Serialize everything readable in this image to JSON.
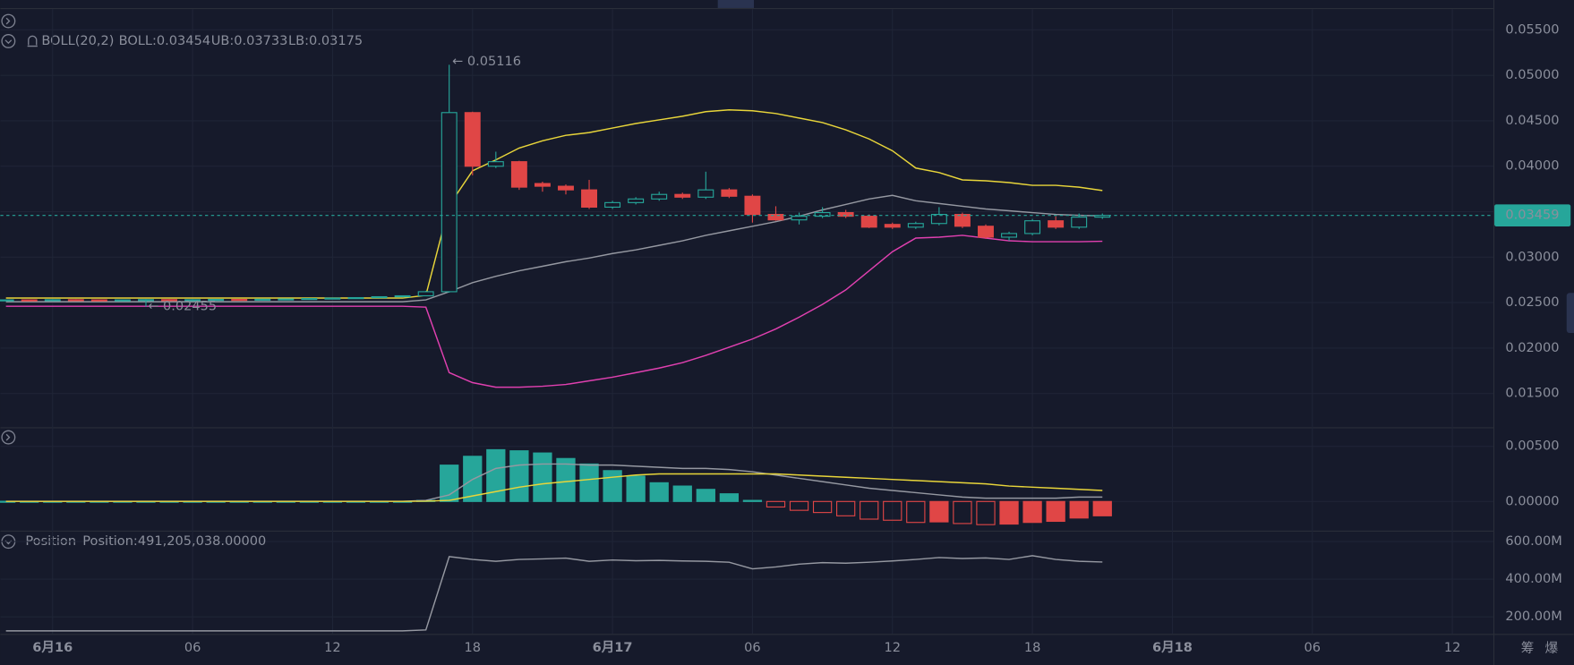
{
  "toolbar": [
    "筹",
    "爆"
  ],
  "chart_data": [
    {
      "type": "candlestick",
      "indicator_label": "BOLL(20,2)",
      "readouts": [
        "BOLL:0.03454",
        "UB:0.03733",
        "LB:0.03175"
      ],
      "annotations": [
        "← 0.05116",
        "← 0.02455"
      ],
      "last_price": {
        "value": 0.03459,
        "label": "0.03459"
      },
      "last_color": "#26a69a",
      "up_color": "#26a69a",
      "down_color": "#e04646",
      "xlim": [
        -2.24,
        61.76
      ],
      "xticks": [
        {
          "value": 0,
          "label": "6月16"
        },
        {
          "value": 6,
          "label": "06"
        },
        {
          "value": 12,
          "label": "12"
        },
        {
          "value": 18,
          "label": "18"
        },
        {
          "value": 24,
          "label": "6月17"
        },
        {
          "value": 30,
          "label": "06"
        },
        {
          "value": 36,
          "label": "12"
        },
        {
          "value": 42,
          "label": "18"
        },
        {
          "value": 48,
          "label": "6月18"
        },
        {
          "value": 54,
          "label": "06"
        },
        {
          "value": 60,
          "label": "12"
        }
      ],
      "ylim": [
        0.0114,
        0.0574
      ],
      "yticks": [
        {
          "value": 0.055,
          "label": "0.05500"
        },
        {
          "value": 0.05,
          "label": "0.05000"
        },
        {
          "value": 0.045,
          "label": "0.04500"
        },
        {
          "value": 0.04,
          "label": "0.04000"
        },
        {
          "value": 0.035,
          "label": "0.03500"
        },
        {
          "value": 0.03,
          "label": "0.03000"
        },
        {
          "value": 0.025,
          "label": "0.02500"
        },
        {
          "value": 0.02,
          "label": "0.02000"
        },
        {
          "value": 0.015,
          "label": "0.01500"
        }
      ],
      "grid": true,
      "x": [
        -2,
        -1,
        0,
        1,
        2,
        3,
        4,
        5,
        6,
        7,
        8,
        9,
        10,
        11,
        12,
        13,
        14,
        15,
        16,
        17,
        18,
        19,
        20,
        21,
        22,
        23,
        24,
        25,
        26,
        27,
        28,
        29,
        30,
        31,
        32,
        33,
        34,
        35,
        36,
        37,
        38,
        39,
        40,
        41,
        42,
        43,
        44,
        45
      ],
      "open": [
        0.02525,
        0.0253,
        0.02528,
        0.02532,
        0.0253,
        0.02527,
        0.0253,
        0.02533,
        0.0253,
        0.02532,
        0.02535,
        0.02533,
        0.02537,
        0.0254,
        0.02545,
        0.0255,
        0.02555,
        0.02565,
        0.02575,
        0.0262,
        0.0459,
        0.04,
        0.0405,
        0.0381,
        0.0378,
        0.0374,
        0.0355,
        0.036,
        0.0364,
        0.0369,
        0.0366,
        0.0374,
        0.0367,
        0.0347,
        0.0341,
        0.0345,
        0.0349,
        0.0345,
        0.0336,
        0.0333,
        0.0337,
        0.0347,
        0.0334,
        0.0322,
        0.0326,
        0.034,
        0.0333,
        0.0344
      ],
      "high": [
        0.02535,
        0.02535,
        0.02537,
        0.02537,
        0.02535,
        0.02535,
        0.02538,
        0.02538,
        0.02537,
        0.0254,
        0.0254,
        0.02542,
        0.02545,
        0.0255,
        0.02555,
        0.0256,
        0.0257,
        0.0258,
        0.0263,
        0.05116,
        0.046,
        0.0416,
        0.0406,
        0.0383,
        0.038,
        0.0385,
        0.0362,
        0.0366,
        0.0372,
        0.0371,
        0.0394,
        0.0376,
        0.0369,
        0.0356,
        0.0349,
        0.0355,
        0.0352,
        0.0347,
        0.0338,
        0.0339,
        0.0355,
        0.0349,
        0.0336,
        0.0328,
        0.0342,
        0.0345,
        0.0348,
        0.0348
      ],
      "low": [
        0.0252,
        0.02523,
        0.02523,
        0.02525,
        0.02522,
        0.02522,
        0.02455,
        0.02525,
        0.02525,
        0.02527,
        0.02528,
        0.02528,
        0.02535,
        0.02535,
        0.0254,
        0.02545,
        0.0255,
        0.0256,
        0.0257,
        0.0261,
        0.039,
        0.0398,
        0.0374,
        0.0372,
        0.0369,
        0.0353,
        0.0353,
        0.0358,
        0.0362,
        0.0364,
        0.0364,
        0.0365,
        0.0338,
        0.034,
        0.0336,
        0.0343,
        0.0343,
        0.0332,
        0.0331,
        0.0331,
        0.0335,
        0.0332,
        0.032,
        0.0318,
        0.0324,
        0.0331,
        0.0331,
        0.0342
      ],
      "close": [
        0.0253,
        0.02528,
        0.02532,
        0.0253,
        0.02527,
        0.0253,
        0.02533,
        0.0253,
        0.02532,
        0.02535,
        0.02533,
        0.02537,
        0.0254,
        0.02545,
        0.0255,
        0.02555,
        0.02565,
        0.02575,
        0.0262,
        0.0459,
        0.04,
        0.0405,
        0.0377,
        0.0378,
        0.0374,
        0.0355,
        0.036,
        0.0364,
        0.0369,
        0.0366,
        0.0374,
        0.0367,
        0.0347,
        0.0341,
        0.0345,
        0.0349,
        0.0345,
        0.0333,
        0.0333,
        0.0337,
        0.0347,
        0.0334,
        0.0322,
        0.0326,
        0.034,
        0.0333,
        0.0344,
        0.03459
      ],
      "series": [
        {
          "name": "BOLL",
          "color": "#9598a1",
          "values": [
            0.0251,
            0.0251,
            0.0251,
            0.0251,
            0.0251,
            0.0251,
            0.0251,
            0.0251,
            0.0251,
            0.0251,
            0.0251,
            0.0251,
            0.0251,
            0.0251,
            0.0251,
            0.0251,
            0.0251,
            0.0251,
            0.0253,
            0.0262,
            0.0272,
            0.0279,
            0.0285,
            0.029,
            0.0295,
            0.0299,
            0.0304,
            0.0308,
            0.0313,
            0.0318,
            0.0324,
            0.0329,
            0.0334,
            0.0339,
            0.0345,
            0.0352,
            0.0358,
            0.0364,
            0.0368,
            0.0362,
            0.0359,
            0.0356,
            0.0353,
            0.0351,
            0.0349,
            0.0347,
            0.0346,
            0.03454
          ]
        },
        {
          "name": "UB",
          "color": "#e8d53a",
          "values": [
            0.0255,
            0.0255,
            0.0255,
            0.0255,
            0.0255,
            0.0255,
            0.0255,
            0.0255,
            0.0255,
            0.0255,
            0.0255,
            0.0255,
            0.0255,
            0.0255,
            0.0255,
            0.0255,
            0.0255,
            0.0255,
            0.0258,
            0.0357,
            0.0395,
            0.0407,
            0.042,
            0.0428,
            0.0434,
            0.0437,
            0.0442,
            0.0447,
            0.0451,
            0.0455,
            0.046,
            0.0462,
            0.0461,
            0.0458,
            0.0453,
            0.0448,
            0.044,
            0.043,
            0.0417,
            0.0398,
            0.0393,
            0.0385,
            0.0384,
            0.0382,
            0.0379,
            0.0379,
            0.0377,
            0.03733
          ]
        },
        {
          "name": "LB",
          "color": "#e040b0",
          "values": [
            0.0246,
            0.0246,
            0.0246,
            0.0246,
            0.0246,
            0.0246,
            0.0246,
            0.0246,
            0.0246,
            0.0246,
            0.0246,
            0.0246,
            0.0246,
            0.0246,
            0.0246,
            0.0246,
            0.0246,
            0.0246,
            0.0245,
            0.0173,
            0.0162,
            0.0157,
            0.0157,
            0.0158,
            0.016,
            0.0164,
            0.0168,
            0.0173,
            0.0178,
            0.0184,
            0.0192,
            0.0201,
            0.021,
            0.0221,
            0.0234,
            0.0248,
            0.0264,
            0.0285,
            0.0306,
            0.0321,
            0.0322,
            0.0324,
            0.0321,
            0.0318,
            0.0317,
            0.0317,
            0.0317,
            0.03175
          ]
        }
      ]
    },
    {
      "type": "histogram",
      "up_color": "#26a69a",
      "down_color": "#e04646",
      "ylim": [
        -0.00255,
        0.00655
      ],
      "yticks": [
        {
          "value": 0.005,
          "label": "0.00500"
        },
        {
          "value": 0,
          "label": "0.00000"
        }
      ],
      "values": [
        2e-05,
        2e-05,
        2e-05,
        2e-05,
        2e-05,
        2e-05,
        2e-05,
        2e-05,
        2e-05,
        2e-05,
        2e-05,
        2e-05,
        2e-05,
        2e-05,
        2e-05,
        2e-05,
        2e-05,
        2e-05,
        0.0001,
        0.0033,
        0.0041,
        0.0047,
        0.0046,
        0.0044,
        0.0039,
        0.0034,
        0.0028,
        0.0023,
        0.0017,
        0.0014,
        0.0011,
        0.0007,
        0.0001,
        -0.0005,
        -0.0008,
        -0.001,
        -0.0013,
        -0.0016,
        -0.0017,
        -0.0019,
        -0.00185,
        -0.002,
        -0.0021,
        -0.00205,
        -0.0019,
        -0.0018,
        -0.0015,
        -0.0013
      ],
      "series": [
        {
          "color": "#9598a1",
          "values": [
            2e-05,
            2e-05,
            2e-05,
            2e-05,
            2e-05,
            2e-05,
            2e-05,
            2e-05,
            2e-05,
            2e-05,
            2e-05,
            2e-05,
            2e-05,
            2e-05,
            2e-05,
            2e-05,
            2e-05,
            2e-05,
            0.0001,
            0.0006,
            0.002,
            0.003,
            0.0033,
            0.0034,
            0.0034,
            0.0033,
            0.0033,
            0.0032,
            0.0031,
            0.003,
            0.003,
            0.0029,
            0.0027,
            0.0024,
            0.0021,
            0.0018,
            0.0015,
            0.0012,
            0.001,
            0.0008,
            0.0006,
            0.0004,
            0.0003,
            0.0003,
            0.0003,
            0.0003,
            0.0004,
            0.0004
          ]
        },
        {
          "color": "#e8d53a",
          "values": [
            1e-05,
            1e-05,
            1e-05,
            1e-05,
            1e-05,
            1e-05,
            1e-05,
            1e-05,
            1e-05,
            1e-05,
            1e-05,
            1e-05,
            1e-05,
            1e-05,
            1e-05,
            1e-05,
            1e-05,
            1e-05,
            3e-05,
            0.0001,
            0.0005,
            0.0009,
            0.0013,
            0.0016,
            0.0018,
            0.002,
            0.0022,
            0.0024,
            0.0025,
            0.0025,
            0.0025,
            0.0025,
            0.0025,
            0.0025,
            0.0024,
            0.0023,
            0.0022,
            0.0021,
            0.002,
            0.0019,
            0.0018,
            0.0017,
            0.0016,
            0.0014,
            0.0013,
            0.0012,
            0.0011,
            0.001
          ]
        }
      ]
    },
    {
      "type": "line",
      "indicator_label": "Position",
      "readouts": [
        "Position:491,205,038.00000"
      ],
      "ylim": [
        109000000,
        653000000
      ],
      "yticks": [
        {
          "value": 600000000,
          "label": "600.00M"
        },
        {
          "value": 400000000,
          "label": "400.00M"
        },
        {
          "value": 200000000,
          "label": "200.00M"
        }
      ],
      "series": [
        {
          "color": "#9598a1",
          "values": [
            125000000,
            125000000,
            125000000,
            125000000,
            125000000,
            125000000,
            125000000,
            125000000,
            125000000,
            125000000,
            125000000,
            125000000,
            125000000,
            125000000,
            125000000,
            125000000,
            125000000,
            125000000,
            130000000,
            520000000,
            505000000,
            495000000,
            505000000,
            508000000,
            512000000,
            495000000,
            502000000,
            498000000,
            500000000,
            497000000,
            495000000,
            490000000,
            455000000,
            465000000,
            480000000,
            488000000,
            485000000,
            490000000,
            497000000,
            505000000,
            515000000,
            510000000,
            513000000,
            505000000,
            525000000,
            505000000,
            495000000,
            491205038
          ]
        }
      ]
    }
  ]
}
